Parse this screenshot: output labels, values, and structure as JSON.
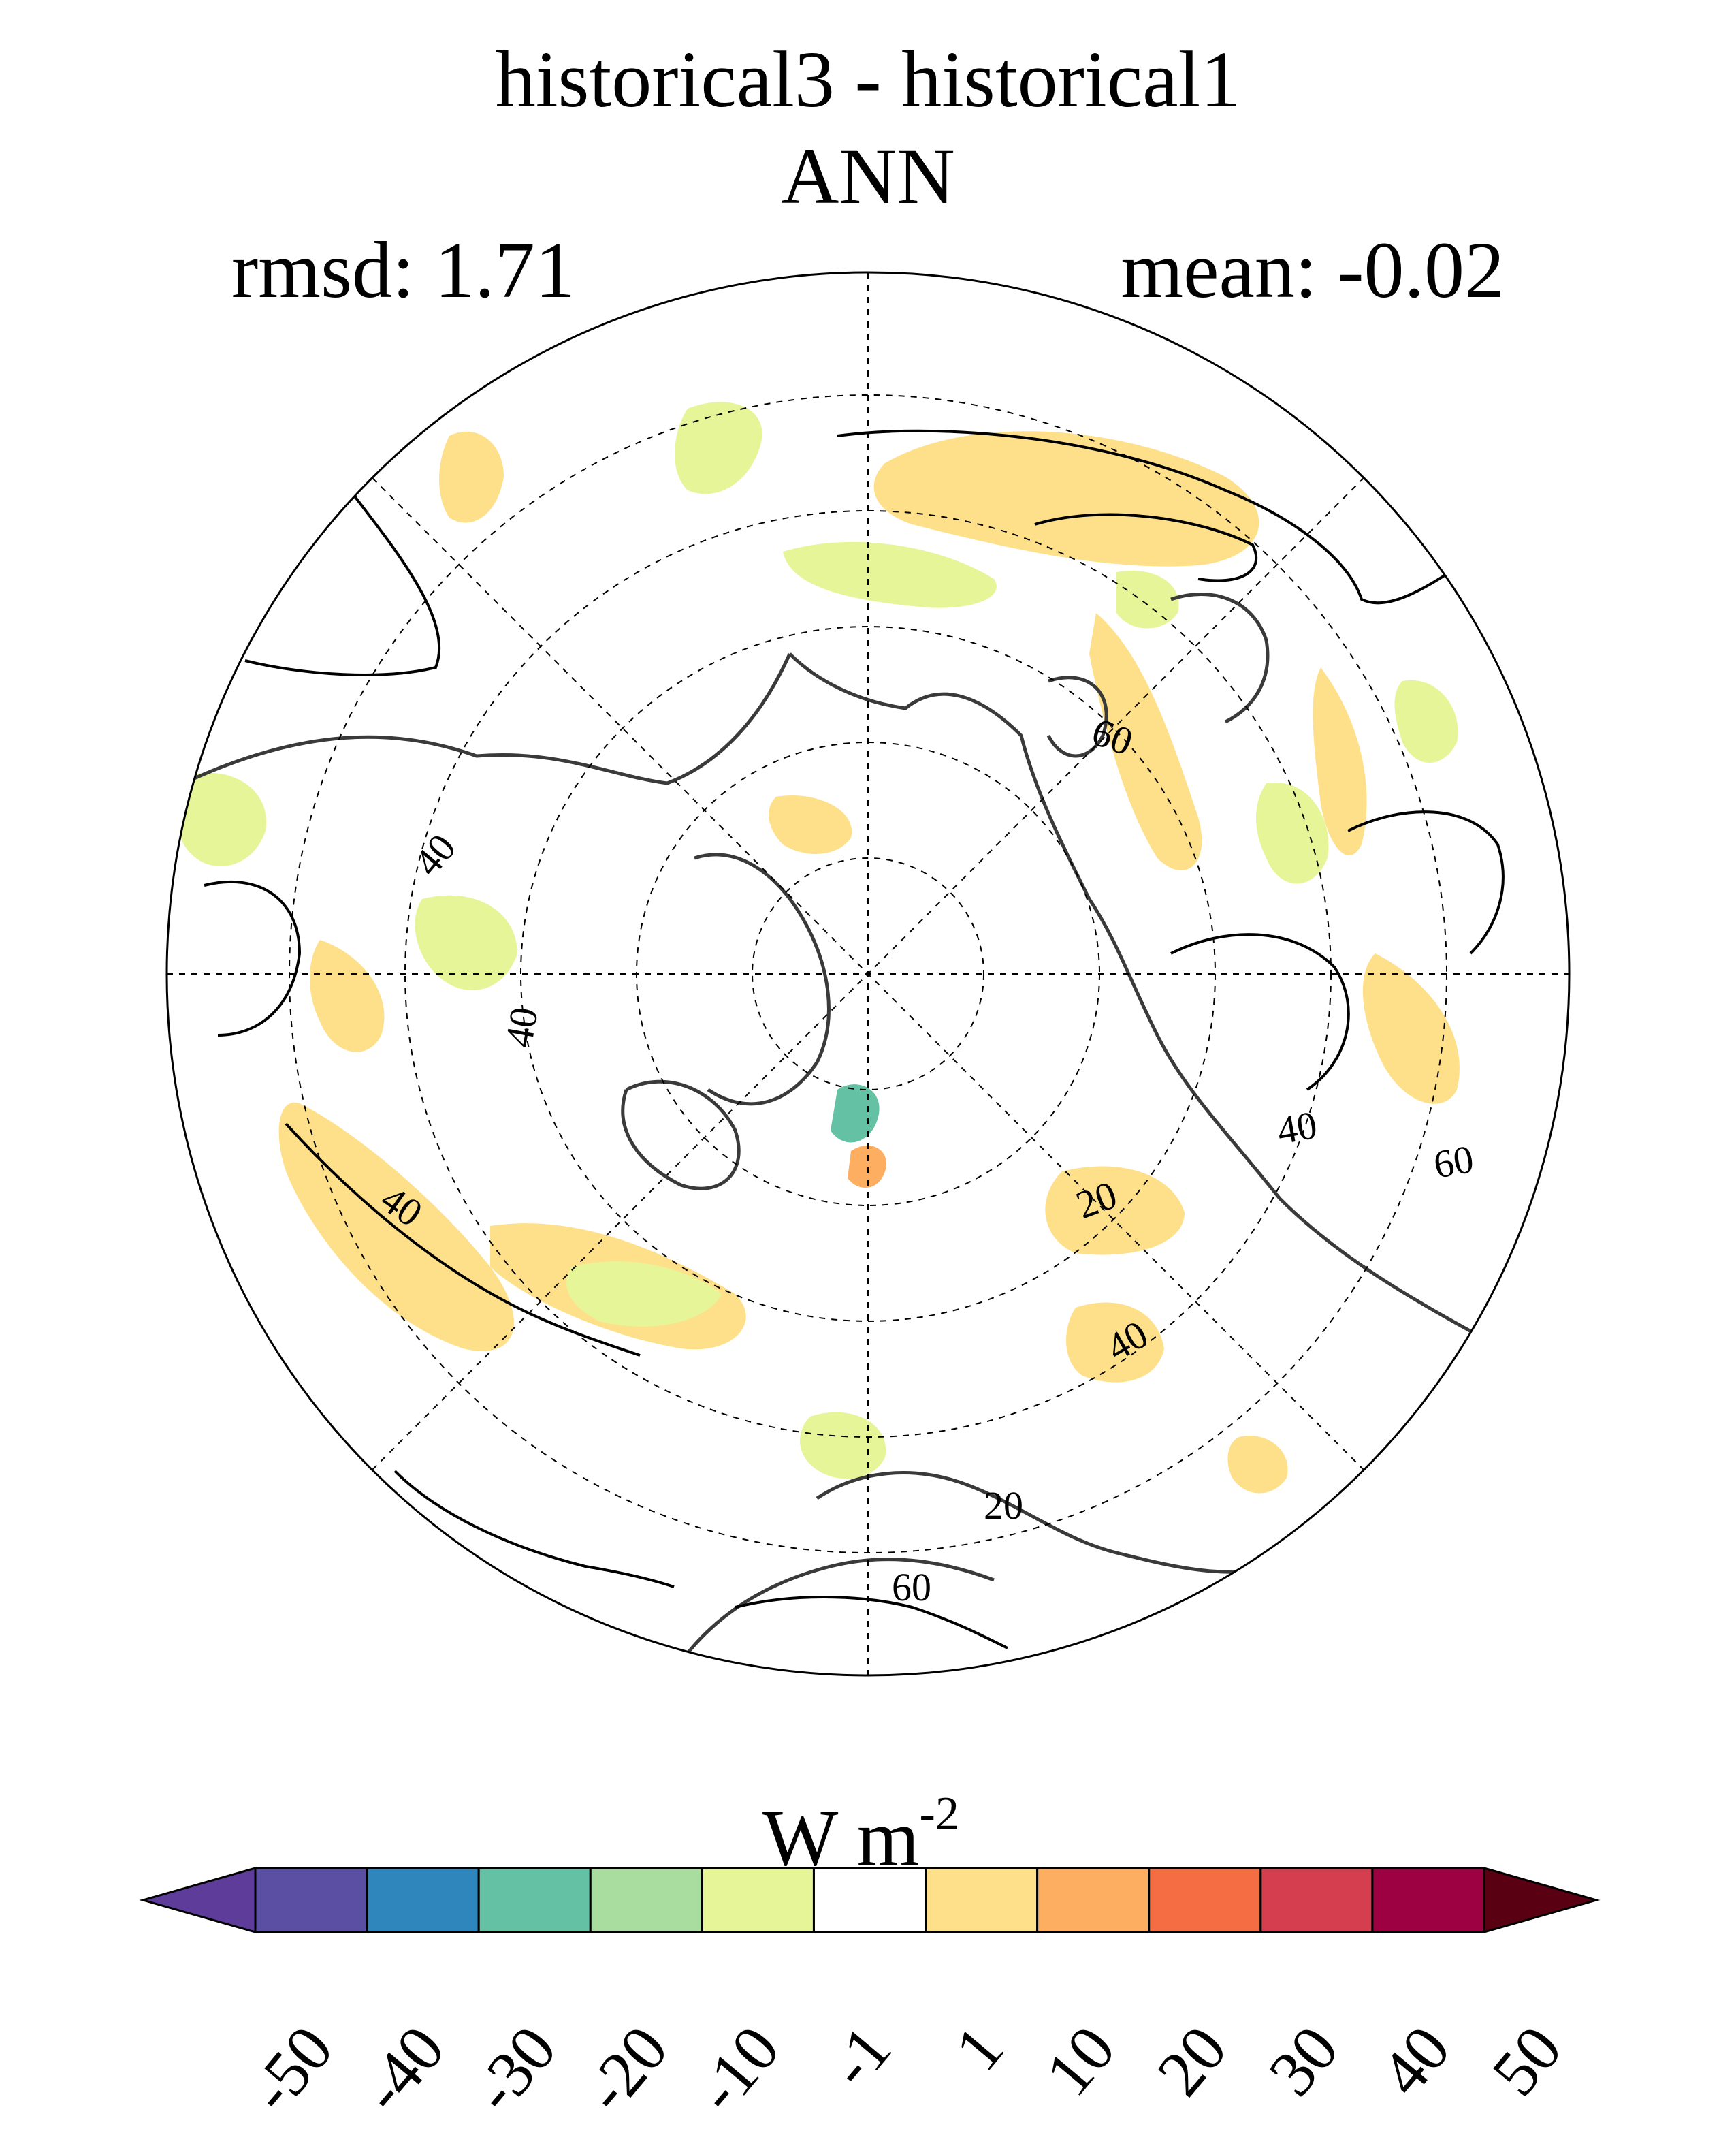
{
  "title": {
    "main": "historical3 - historical1",
    "season": "ANN"
  },
  "stats": {
    "rmsd_label": "rmsd: 1.71",
    "mean_label": "mean: -0.02"
  },
  "map": {
    "projection": "north-polar-stereographic",
    "contour_labels": [
      "40",
      "40",
      "60",
      "40",
      "20",
      "40",
      "20",
      "40",
      "60",
      "60"
    ]
  },
  "colorbar": {
    "units_base": "W m",
    "units_exponent": "-2",
    "tick_labels": [
      "-50",
      "-40",
      "-30",
      "-20",
      "-10",
      "-1",
      "1",
      "10",
      "20",
      "30",
      "40",
      "50"
    ],
    "colors": [
      "#5e3c99",
      "#5b4fa3",
      "#2e86bd",
      "#64c1a4",
      "#a9dc9f",
      "#e6f598",
      "#ffffff",
      "#fee08b",
      "#fdae61",
      "#f46d43",
      "#d53e4f",
      "#9e0142",
      "#5a0013"
    ]
  }
}
